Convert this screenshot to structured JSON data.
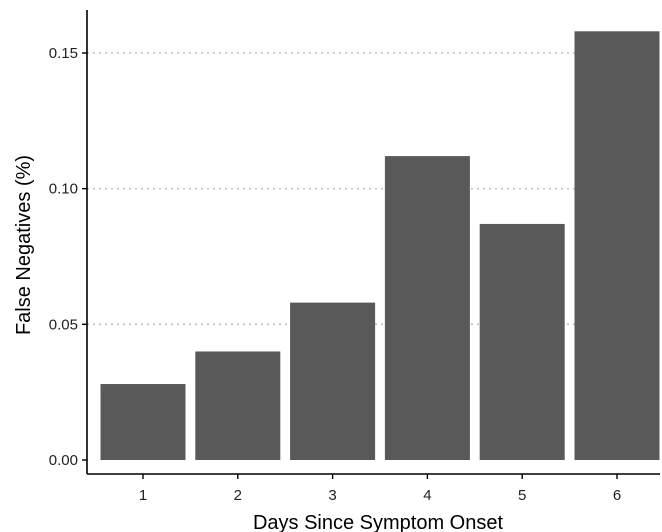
{
  "chart_data": {
    "type": "bar",
    "categories": [
      "1",
      "2",
      "3",
      "4",
      "5",
      "6"
    ],
    "values": [
      0.028,
      0.04,
      0.058,
      0.112,
      0.087,
      0.158
    ],
    "title": "",
    "xlabel": "Days Since Symptom Onset",
    "ylabel": "False Negatives (%)",
    "ylim": [
      0,
      0.165
    ],
    "yticks": [
      0.0,
      0.05,
      0.1,
      0.15
    ],
    "ytick_labels": [
      "0.00",
      "0.05",
      "0.10",
      "0.15"
    ],
    "grid": "horizontal dotted",
    "legend": "none",
    "bar_color": "#595959",
    "grid_color": "#bfbfbf",
    "axis_color": "#000000"
  }
}
